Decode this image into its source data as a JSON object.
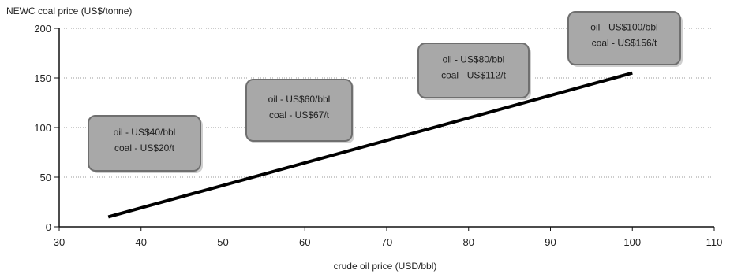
{
  "chart_data": {
    "type": "line",
    "ylabel": "NEWC coal price (US$/tonne)",
    "xlabel": "crude oil price (USD/bbl)",
    "xlim": [
      30,
      110
    ],
    "ylim": [
      0,
      200
    ],
    "xticks": [
      30,
      40,
      50,
      60,
      70,
      80,
      90,
      100,
      110
    ],
    "yticks": [
      0,
      50,
      100,
      150,
      200
    ],
    "grid": "horizontal, dotted",
    "series": [
      {
        "x": [
          36,
          100
        ],
        "y": [
          10,
          155
        ],
        "color": "#000000"
      }
    ],
    "annotations": [
      {
        "lines": [
          "oil - US$40/bbl",
          "coal - US$20/t"
        ]
      },
      {
        "lines": [
          "oil - US$60/bbl",
          "coal - US$67/t"
        ]
      },
      {
        "lines": [
          "oil - US$80/bbl",
          "coal - US$112/t"
        ]
      },
      {
        "lines": [
          "oil - US$100/bbl",
          "coal - US$156/t"
        ]
      }
    ],
    "annotation_fill": "#a8a8a8",
    "annotation_border": "#6f6f6f"
  }
}
